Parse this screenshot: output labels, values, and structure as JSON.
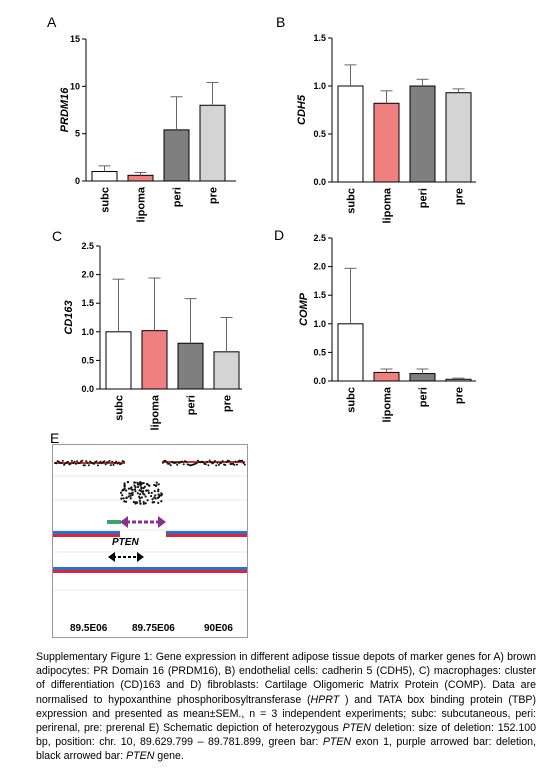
{
  "panels": {
    "a": "A",
    "b": "B",
    "c": "C",
    "d": "D",
    "e": "E"
  },
  "chart_data": [
    {
      "type": "bar",
      "panel": "A",
      "ylabel": "PRDM16",
      "categories": [
        "subc",
        "lipoma",
        "peri",
        "pre"
      ],
      "values": [
        1.0,
        0.6,
        5.4,
        8.0
      ],
      "errors": [
        0.6,
        0.3,
        3.5,
        2.4
      ],
      "ylim": [
        0,
        15
      ],
      "yticks": [
        "0",
        "5",
        "10",
        "15"
      ],
      "colors": [
        "#ffffff",
        "#f08080",
        "#7f7f7f",
        "#d4d4d4"
      ]
    },
    {
      "type": "bar",
      "panel": "B",
      "ylabel": "CDH5",
      "categories": [
        "subc",
        "lipoma",
        "peri",
        "pre"
      ],
      "values": [
        1.0,
        0.82,
        1.0,
        0.93
      ],
      "errors": [
        0.22,
        0.13,
        0.07,
        0.04
      ],
      "ylim": [
        0,
        1.5
      ],
      "yticks": [
        "0.0",
        "0.5",
        "1.0",
        "1.5"
      ],
      "colors": [
        "#ffffff",
        "#f08080",
        "#7f7f7f",
        "#d4d4d4"
      ]
    },
    {
      "type": "bar",
      "panel": "C",
      "ylabel": "CD163",
      "categories": [
        "subc",
        "lipoma",
        "peri",
        "pre"
      ],
      "values": [
        1.0,
        1.02,
        0.8,
        0.65
      ],
      "errors": [
        0.92,
        0.92,
        0.78,
        0.6
      ],
      "ylim": [
        0,
        2.5
      ],
      "yticks": [
        "0.0",
        "0.5",
        "1.0",
        "1.5",
        "2.0",
        "2.5"
      ],
      "colors": [
        "#ffffff",
        "#f08080",
        "#7f7f7f",
        "#d4d4d4"
      ]
    },
    {
      "type": "bar",
      "panel": "D",
      "ylabel": "COMP",
      "categories": [
        "subc",
        "lipoma",
        "peri",
        "pre"
      ],
      "values": [
        1.0,
        0.15,
        0.13,
        0.03
      ],
      "errors": [
        0.97,
        0.06,
        0.08,
        0.02
      ],
      "ylim": [
        0,
        2.5
      ],
      "yticks": [
        "0.0",
        "0.5",
        "1.0",
        "1.5",
        "2.0",
        "2.5"
      ],
      "colors": [
        "#ffffff",
        "#f08080",
        "#7f7f7f",
        "#d4d4d4"
      ]
    }
  ],
  "genome": {
    "gene_label": "PTEN",
    "x_ticks": [
      "89.5E06",
      "89.75E06",
      "90E06"
    ]
  },
  "caption": {
    "p1": "Supplementary Figure 1: Gene expression in different adipose tissue depots of marker genes for A) brown adipocytes: PR Domain 16 (PRDM16), B) endothelial cells: cadherin 5 (CDH5), C) macrophages: cluster of differentiation (CD)163 and D) fibroblasts: Cartilage Oligomeric Matrix Protein (COMP). Data are normalised to hypoxanthine phosphoribosyltransferase (",
    "hprt": "HPRT",
    "p2": " ) and TATA box binding protein (TBP) expression and presented as mean±SEM., n = 3 independent experiments; subc: subcutaneous, peri: perirenal, pre: prerenal E) Schematic depiction of heterozygous ",
    "pten1": "PTEN",
    "p3": " deletion: size of deletion: 152.100 bp, position: chr. 10, 89.629.799 – 89.781.899, green bar: ",
    "pten2": "PTEN",
    "p4": " exon 1, purple arrowed bar: deletion, black arrowed bar: ",
    "pten3": "PTEN",
    "p5": " gene."
  }
}
